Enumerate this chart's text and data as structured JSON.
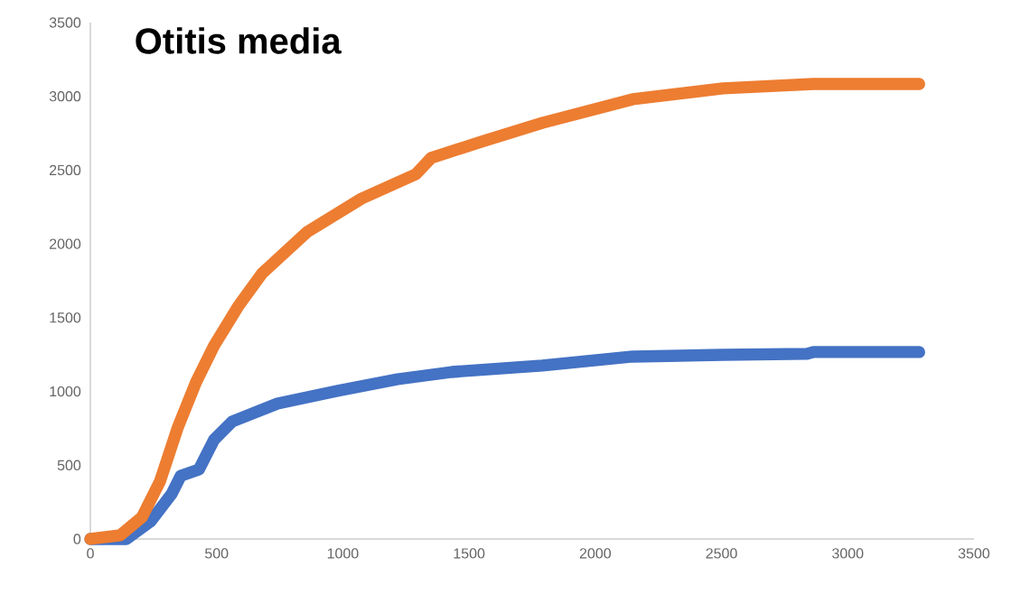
{
  "chart_data": {
    "type": "line",
    "title": "Otitis media",
    "xlim": [
      0,
      3500
    ],
    "xticks": [
      0,
      500,
      1000,
      1500,
      2000,
      2500,
      3000,
      3500
    ],
    "ylim": [
      0,
      3500
    ],
    "yticks": [
      0,
      500,
      1000,
      1500,
      2000,
      2500,
      3000,
      3500
    ],
    "grid": false,
    "marker": "none",
    "line_style": "solid",
    "series": [
      {
        "color": "#4472c4",
        "x": [
          0,
          143,
          240,
          322,
          358,
          430,
          490,
          562,
          741,
          977,
          1217,
          1432,
          1790,
          2148,
          2506,
          2839,
          2864,
          3283
        ],
        "values": [
          0,
          0,
          122,
          306,
          428,
          471,
          673,
          796,
          918,
          1004,
          1083,
          1132,
          1175,
          1236,
          1248,
          1255,
          1267,
          1267
        ]
      },
      {
        "color": "#ed7d31",
        "x": [
          0,
          118,
          204,
          276,
          347,
          419,
          490,
          584,
          680,
          859,
          1074,
          1289,
          1350,
          1550,
          1790,
          2148,
          2506,
          2864,
          3283
        ],
        "values": [
          0,
          25,
          147,
          392,
          759,
          1065,
          1310,
          1573,
          1800,
          2081,
          2307,
          2472,
          2583,
          2693,
          2820,
          2980,
          3054,
          3084,
          3084
        ]
      }
    ]
  }
}
